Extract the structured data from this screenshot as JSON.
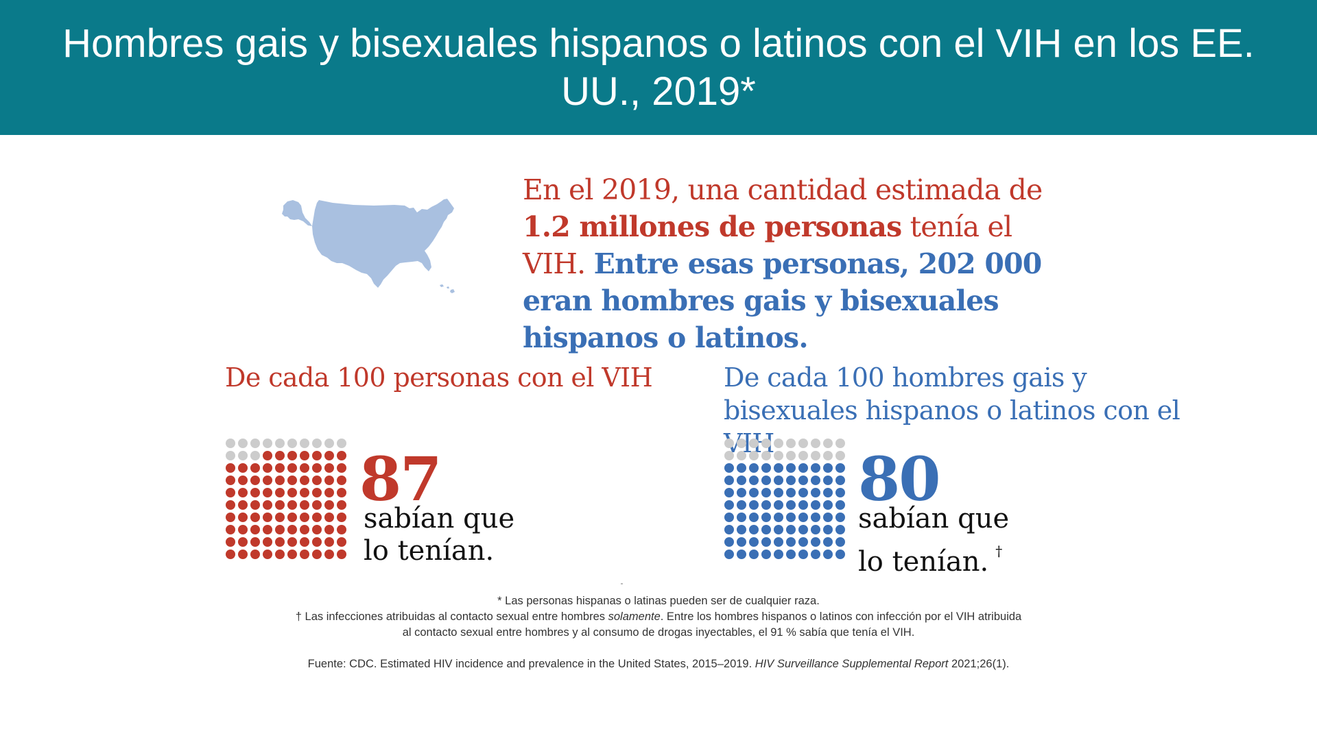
{
  "title": "Hombres gais y bisexuales hispanos o latinos con el VIH en los EE. UU., 2019*",
  "intro": {
    "part1": "En el 2019, una cantidad estimada de ",
    "part2": "1.2 millones de personas",
    "part3": " tenía el VIH. ",
    "part4": "Entre esas personas, 202 000 eran hombres gais y bisexuales hispanos o latinos."
  },
  "left": {
    "heading": "De cada 100 personas con el VIH",
    "number": "87",
    "line1": "sabían que",
    "line2": "lo tenían."
  },
  "right": {
    "heading": "De cada 100 hombres gais y bisexuales hispanos o latinos con el VIH",
    "number": "80",
    "line1": "sabían que",
    "line2": "lo tenían.",
    "dagger": "†"
  },
  "footnotes": {
    "race_note": "* Las personas hispanas o latinas pueden ser de cualquier raza.",
    "sexual_note_a": "† Las infecciones atribuidas al contacto sexual entre hombres ",
    "sexual_note_em": "solamente",
    "sexual_note_b": ". Entre los hombres hispanos o latinos con infección por el VIH atribuida",
    "sexual_note_c": "al contacto sexual entre hombres y al consumo de drogas inyectables, el 91 % sabía que tenía el VIH.",
    "source_a": "Fuente: CDC. Estimated HIV incidence and prevalence in the United States, 2015–2019. ",
    "source_em": "HIV Surveillance Supplemental Report",
    "source_b": " 2021;26(1)."
  },
  "dot_arrays": {
    "total": 100,
    "left_filled": 87,
    "right_filled": 80
  },
  "colors": {
    "header_bg": "#0a7a8a",
    "red": "#c0392b",
    "blue": "#3a6fb5",
    "map": "#a9c0e0",
    "empty_dot": "#cccccc"
  },
  "icons": {
    "map": "us-map-icon"
  }
}
